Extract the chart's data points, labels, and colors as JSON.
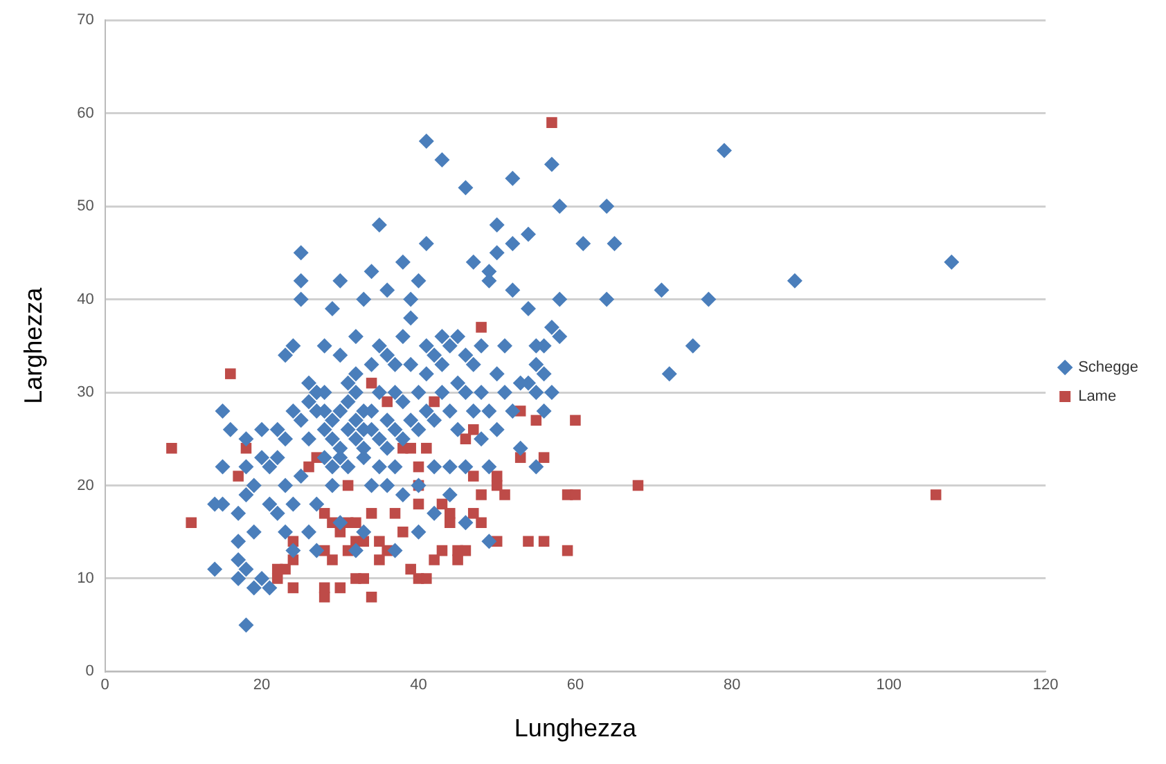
{
  "chart_data": {
    "type": "scatter",
    "xlabel": "Lunghezza",
    "ylabel": "Larghezza",
    "xlim": [
      0,
      120
    ],
    "ylim": [
      0,
      70
    ],
    "xticks": [
      0,
      20,
      40,
      60,
      80,
      100,
      120
    ],
    "yticks": [
      0,
      10,
      20,
      30,
      40,
      50,
      60,
      70
    ],
    "grid": "y",
    "legend": "right",
    "series": [
      {
        "name": "Schegge",
        "color": "#4a7ebb",
        "marker": "diamond",
        "x": [
          79,
          108,
          88,
          77,
          75,
          72,
          71,
          65,
          64,
          64,
          61,
          58,
          57,
          58,
          57,
          58,
          57,
          56,
          55,
          56,
          55,
          54,
          54,
          54,
          52,
          52,
          52,
          50,
          50,
          49,
          49,
          47,
          46,
          43,
          41,
          41,
          38,
          40,
          39,
          35,
          36,
          34,
          33,
          30,
          32,
          29,
          28,
          27,
          25,
          25,
          25,
          24,
          23,
          22,
          20,
          20,
          21,
          19,
          18,
          18,
          17,
          15,
          15,
          14,
          14,
          15,
          16,
          17,
          17,
          17,
          18,
          18,
          18,
          19,
          19,
          20,
          21,
          21,
          22,
          22,
          23,
          23,
          24,
          24,
          25,
          25,
          26,
          26,
          26,
          27,
          27,
          28,
          28,
          28,
          29,
          29,
          29,
          29,
          30,
          30,
          30,
          30,
          31,
          31,
          31,
          31,
          32,
          32,
          32,
          32,
          33,
          33,
          33,
          33,
          34,
          34,
          34,
          34,
          35,
          35,
          35,
          35,
          36,
          36,
          36,
          36,
          37,
          37,
          37,
          37,
          38,
          38,
          38,
          39,
          39,
          39,
          40,
          40,
          40,
          40,
          41,
          41,
          41,
          42,
          42,
          42,
          43,
          43,
          43,
          44,
          44,
          44,
          45,
          45,
          45,
          46,
          46,
          46,
          47,
          47,
          48,
          48,
          48,
          49,
          49,
          50,
          50,
          51,
          51,
          52,
          53,
          53,
          55,
          56,
          55,
          49,
          46,
          44,
          42,
          38,
          37,
          33,
          32,
          30,
          27,
          27,
          26,
          28,
          24,
          23
        ],
        "values": [
          56,
          44,
          42,
          40,
          35,
          32,
          41,
          46,
          50,
          40,
          46,
          50,
          54.5,
          40,
          37,
          36,
          30,
          32,
          33,
          35,
          35,
          31,
          39,
          47,
          53,
          46,
          41,
          48,
          45,
          43,
          42,
          44,
          52,
          55,
          57,
          46,
          44,
          42,
          40,
          48,
          41,
          43,
          40,
          42,
          36,
          39,
          35,
          30,
          45,
          42,
          40,
          35,
          34,
          26,
          26,
          23,
          22,
          20,
          22,
          19,
          17,
          22,
          18,
          18,
          11,
          28,
          26,
          14,
          12,
          10,
          11,
          5,
          25,
          15,
          9,
          10,
          9,
          18,
          17,
          23,
          15,
          20,
          13,
          18,
          27,
          21,
          25,
          29,
          31,
          28,
          30,
          28,
          26,
          30,
          25,
          27,
          22,
          20,
          23,
          24,
          28,
          34,
          29,
          31,
          26,
          22,
          25,
          27,
          30,
          32,
          28,
          26,
          24,
          23,
          20,
          26,
          28,
          33,
          30,
          35,
          22,
          25,
          34,
          27,
          24,
          20,
          22,
          26,
          30,
          33,
          29,
          25,
          36,
          27,
          33,
          38,
          30,
          26,
          20,
          15,
          28,
          32,
          35,
          22,
          27,
          34,
          30,
          33,
          36,
          22,
          28,
          35,
          26,
          31,
          36,
          22,
          30,
          34,
          28,
          33,
          25,
          30,
          35,
          28,
          22,
          26,
          32,
          35,
          30,
          28,
          24,
          31,
          30,
          28,
          22,
          14,
          16,
          19,
          17,
          19,
          13,
          15,
          13,
          16,
          18,
          13,
          15,
          23,
          28,
          25
        ]
      },
      {
        "name": "Lame",
        "color": "#be4b48",
        "marker": "square",
        "x": [
          8.5,
          11,
          16,
          17,
          18,
          22,
          22,
          23,
          24,
          24,
          24,
          26,
          27,
          28,
          28,
          28,
          28,
          29,
          29,
          30,
          30,
          31,
          31,
          31,
          32,
          32,
          32,
          33,
          33,
          34,
          34,
          34,
          35,
          35,
          36,
          36,
          37,
          38,
          38,
          39,
          39,
          40,
          40,
          40,
          40,
          41,
          41,
          42,
          42,
          43,
          43,
          44,
          44,
          45,
          45,
          46,
          46,
          47,
          47,
          47,
          48,
          48,
          48,
          50,
          50,
          50,
          51,
          53,
          53,
          54,
          55,
          56,
          56,
          57,
          59,
          59,
          60,
          60,
          68,
          106
        ],
        "values": [
          24,
          16,
          32,
          21,
          24,
          10,
          11,
          11,
          9,
          14,
          12,
          22,
          23,
          8,
          9,
          13,
          17,
          12,
          16,
          9,
          15,
          13,
          16,
          20,
          10,
          14,
          16,
          10,
          14,
          8,
          17,
          31,
          12,
          14,
          13,
          29,
          17,
          15,
          24,
          11,
          24,
          10,
          18,
          20,
          22,
          10,
          24,
          12,
          29,
          13,
          18,
          16,
          17,
          12,
          13,
          13,
          25,
          17,
          21,
          26,
          16,
          37,
          19,
          14,
          20,
          21,
          19,
          23,
          28,
          14,
          27,
          14,
          23,
          59,
          13,
          19,
          19,
          27,
          20,
          19
        ]
      }
    ]
  }
}
